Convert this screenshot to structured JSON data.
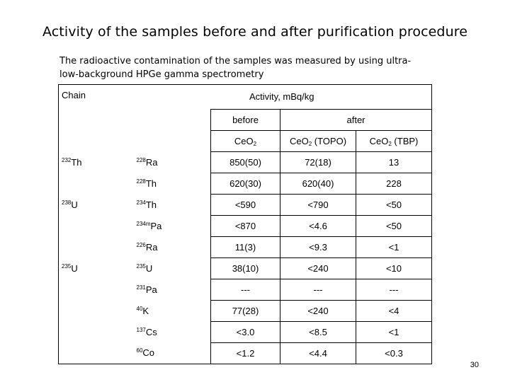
{
  "slide": {
    "title": "Activity of the samples before and after purification procedure",
    "subtitle": "The radioactive contamination of the samples was measured by using ultra-low-background HPGe gamma spectrometry",
    "page_number": "30"
  },
  "table": {
    "chain_header": "Chain",
    "activity_header": "Activity, mBq/kg",
    "before_header": "before",
    "after_header": "after",
    "col1_base": "CeO",
    "col1_sub": "2",
    "col1_suffix": "",
    "col2_base": "CeO",
    "col2_sub": "2",
    "col2_suffix": " (TOPO)",
    "col3_base": "CeO",
    "col3_sub": "2",
    "col3_suffix": " (TBP)",
    "rows": [
      {
        "chain_mass": "232",
        "chain_el": "Th",
        "iso_mass": "228",
        "iso_el": "Ra",
        "v1": "850(50)",
        "v2": "72(18)",
        "v3": "13"
      },
      {
        "chain_mass": "",
        "chain_el": "",
        "iso_mass": "228",
        "iso_el": "Th",
        "v1": "620(30)",
        "v2": "620(40)",
        "v3": "228"
      },
      {
        "chain_mass": "238",
        "chain_el": "U",
        "iso_mass": "234",
        "iso_el": "Th",
        "v1": "<590",
        "v2": "<790",
        "v3": "<50"
      },
      {
        "chain_mass": "",
        "chain_el": "",
        "iso_mass": "234m",
        "iso_el": "Pa",
        "v1": "<870",
        "v2": "<4.6",
        "v3": "<50"
      },
      {
        "chain_mass": "",
        "chain_el": "",
        "iso_mass": "226",
        "iso_el": "Ra",
        "v1": "11(3)",
        "v2": "<9.3",
        "v3": "<1"
      },
      {
        "chain_mass": "235",
        "chain_el": "U",
        "iso_mass": "235",
        "iso_el": "U",
        "v1": "38(10)",
        "v2": "<240",
        "v3": "<10"
      },
      {
        "chain_mass": "",
        "chain_el": "",
        "iso_mass": "231",
        "iso_el": "Pa",
        "v1": "---",
        "v2": "---",
        "v3": "---"
      },
      {
        "chain_mass": "",
        "chain_el": "",
        "iso_mass": "40",
        "iso_el": "K",
        "v1": "77(28)",
        "v2": "<240",
        "v3": "<4"
      },
      {
        "chain_mass": "",
        "chain_el": "",
        "iso_mass": "137",
        "iso_el": "Cs",
        "v1": "<3.0",
        "v2": "<8.5",
        "v3": "<1"
      },
      {
        "chain_mass": "",
        "chain_el": "",
        "iso_mass": "60",
        "iso_el": "Co",
        "v1": "<1.2",
        "v2": "<4.4",
        "v3": "<0.3"
      }
    ]
  }
}
